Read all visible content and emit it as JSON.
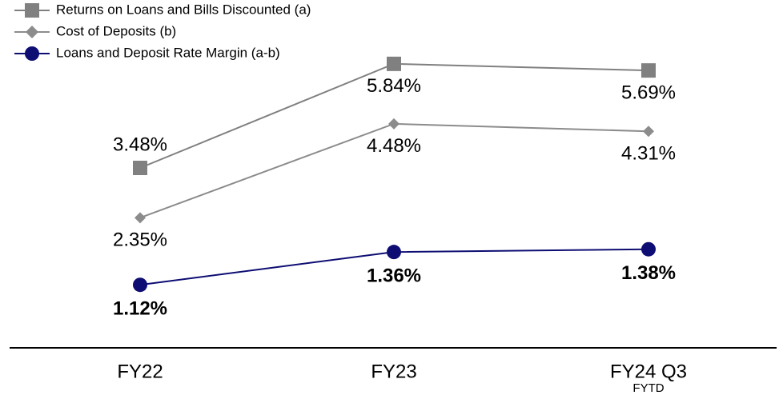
{
  "chart_data": {
    "type": "line",
    "categories": [
      "FY22",
      "FY23",
      "FY24 Q3"
    ],
    "category_note": "FYTD",
    "series": [
      {
        "name": "Returns on Loans and Bills Discounted (a)",
        "color": "#808080",
        "marker": "square",
        "values": [
          3.48,
          5.84,
          5.69
        ],
        "value_labels": [
          "3.48%",
          "5.84%",
          "5.69%"
        ]
      },
      {
        "name": "Cost of Deposits (b)",
        "color": "#8c8c8c",
        "marker": "diamond",
        "values": [
          2.35,
          4.48,
          4.31
        ],
        "value_labels": [
          "2.35%",
          "4.48%",
          "4.31%"
        ]
      },
      {
        "name": "Loans and Deposit Rate Margin (a-b)",
        "color": "#0d0d73",
        "marker": "circle",
        "axis": "y2",
        "values": [
          1.12,
          1.36,
          1.38
        ],
        "value_labels": [
          "1.12%",
          "1.36%",
          "1.38%"
        ]
      }
    ],
    "ylim": [
      -0.6,
      6.2
    ],
    "y2lim": [
      0.66,
      2.85
    ],
    "legend": "upper left"
  }
}
